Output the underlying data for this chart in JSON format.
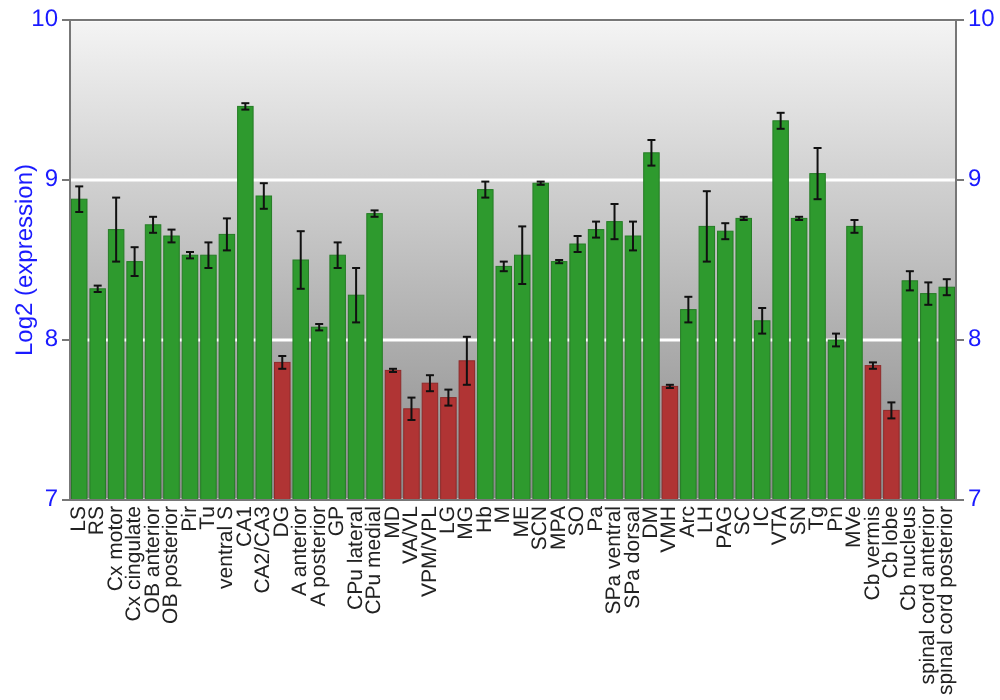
{
  "chart_data": {
    "type": "bar",
    "ylabel": "Log2 (expression)",
    "categories": [
      "LS",
      "RS",
      "Cx motor",
      "Cx cingulate",
      "OB anterior",
      "OB posterior",
      "Pir",
      "Tu",
      "ventral S",
      "CA1",
      "CA2/CA3",
      "DG",
      "A anterior",
      "A posterior",
      "GP",
      "CPu lateral",
      "CPu medial",
      "MD",
      "VA/VL",
      "VPM/VPL",
      "LG",
      "MG",
      "Hb",
      "M",
      "ME",
      "SCN",
      "MPA",
      "SO",
      "Pa",
      "SPa ventral",
      "SPa dorsal",
      "DM",
      "VMH",
      "Arc",
      "LH",
      "PAG",
      "SC",
      "IC",
      "VTA",
      "SN",
      "Tg",
      "Pn",
      "MVe",
      "Cb vermis",
      "Cb lobe",
      "Cb nucleus",
      "spinal cord anterior",
      "spinal cord posterior"
    ],
    "values": [
      8.88,
      8.32,
      8.69,
      8.49,
      8.72,
      8.65,
      8.53,
      8.53,
      8.66,
      9.46,
      8.9,
      7.86,
      8.5,
      8.08,
      8.53,
      8.28,
      8.79,
      7.81,
      7.57,
      7.73,
      7.64,
      7.87,
      8.94,
      8.46,
      8.53,
      8.98,
      8.49,
      8.6,
      8.69,
      8.74,
      8.65,
      9.17,
      7.71,
      8.19,
      8.71,
      8.68,
      8.76,
      8.12,
      9.37,
      8.76,
      9.04,
      8,
      8.71,
      7.84,
      7.56,
      8.37,
      8.29,
      8.33
    ],
    "errors": [
      0.08,
      0.02,
      0.2,
      0.09,
      0.05,
      0.04,
      0.02,
      0.08,
      0.1,
      0.02,
      0.08,
      0.04,
      0.18,
      0.02,
      0.08,
      0.17,
      0.02,
      0.01,
      0.07,
      0.05,
      0.05,
      0.15,
      0.05,
      0.03,
      0.18,
      0.01,
      0.01,
      0.05,
      0.05,
      0.11,
      0.09,
      0.08,
      0.01,
      0.08,
      0.22,
      0.05,
      0.01,
      0.08,
      0.05,
      0.01,
      0.16,
      0.04,
      0.04,
      0.02,
      0.05,
      0.06,
      0.07,
      0.05
    ],
    "colors": [
      "#2e9a2e",
      "#2e9a2e",
      "#2e9a2e",
      "#2e9a2e",
      "#2e9a2e",
      "#2e9a2e",
      "#2e9a2e",
      "#2e9a2e",
      "#2e9a2e",
      "#2e9a2e",
      "#2e9a2e",
      "#b03434",
      "#2e9a2e",
      "#2e9a2e",
      "#2e9a2e",
      "#2e9a2e",
      "#2e9a2e",
      "#b03434",
      "#b03434",
      "#b03434",
      "#b03434",
      "#b03434",
      "#2e9a2e",
      "#2e9a2e",
      "#2e9a2e",
      "#2e9a2e",
      "#2e9a2e",
      "#2e9a2e",
      "#2e9a2e",
      "#2e9a2e",
      "#2e9a2e",
      "#2e9a2e",
      "#b03434",
      "#2e9a2e",
      "#2e9a2e",
      "#2e9a2e",
      "#2e9a2e",
      "#2e9a2e",
      "#2e9a2e",
      "#2e9a2e",
      "#2e9a2e",
      "#2e9a2e",
      "#2e9a2e",
      "#b03434",
      "#b03434",
      "#2e9a2e",
      "#2e9a2e",
      "#2e9a2e"
    ],
    "ylim": [
      7,
      10
    ],
    "yticks": [
      7,
      8,
      9,
      10
    ],
    "y2lim": [
      7,
      10
    ],
    "y2ticks": [
      7,
      8,
      9,
      10
    ],
    "grid": "y"
  }
}
